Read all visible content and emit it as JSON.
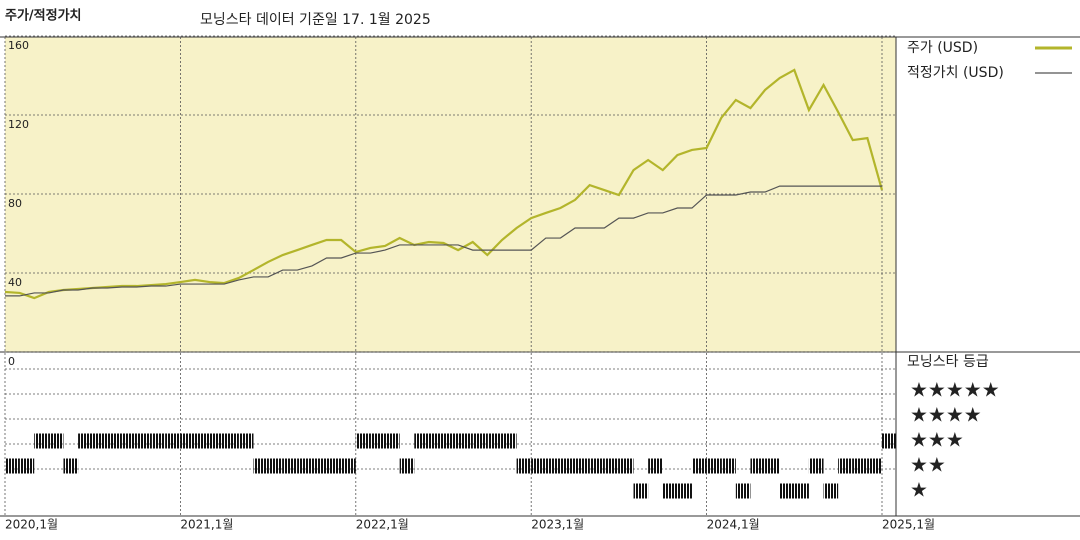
{
  "chart_data": [
    {
      "type": "line",
      "title": "주가/적정가치",
      "subtitle": "모닝스타 데이터 기준일 17. 1월 2025",
      "x": [
        "2020-01",
        "2020-02",
        "2020-03",
        "2020-04",
        "2020-05",
        "2020-06",
        "2020-07",
        "2020-08",
        "2020-09",
        "2020-10",
        "2020-11",
        "2020-12",
        "2021-01",
        "2021-02",
        "2021-03",
        "2021-04",
        "2021-05",
        "2021-06",
        "2021-07",
        "2021-08",
        "2021-09",
        "2021-10",
        "2021-11",
        "2021-12",
        "2022-01",
        "2022-02",
        "2022-03",
        "2022-04",
        "2022-05",
        "2022-06",
        "2022-07",
        "2022-08",
        "2022-09",
        "2022-10",
        "2022-11",
        "2022-12",
        "2023-01",
        "2023-02",
        "2023-03",
        "2023-04",
        "2023-05",
        "2023-06",
        "2023-07",
        "2023-08",
        "2023-09",
        "2023-10",
        "2023-11",
        "2023-12",
        "2024-01",
        "2024-02",
        "2024-03",
        "2024-04",
        "2024-05",
        "2024-06",
        "2024-07",
        "2024-08",
        "2024-09",
        "2024-10",
        "2024-11",
        "2024-12",
        "2025-01"
      ],
      "series": [
        {
          "name": "주가 (USD)",
          "color": "#b3b52b",
          "values": [
            30.4,
            29.9,
            27.3,
            30.4,
            31.4,
            31.9,
            32.4,
            32.9,
            33.4,
            33.4,
            33.9,
            34.4,
            35.4,
            36.5,
            35.4,
            34.9,
            37.5,
            41.5,
            45.6,
            49.1,
            51.6,
            54.2,
            56.7,
            56.7,
            50.6,
            52.7,
            53.7,
            57.7,
            54.2,
            55.7,
            55.2,
            51.6,
            55.7,
            49.1,
            56.7,
            62.8,
            67.8,
            70.4,
            72.9,
            77.0,
            84.5,
            82.0,
            79.5,
            92.1,
            97.2,
            92.1,
            99.7,
            102.3,
            103.3,
            118.5,
            127.6,
            123.5,
            132.7,
            138.7,
            142.8,
            122.5,
            135.2,
            121.5,
            107.3,
            108.3,
            82.0
          ]
        },
        {
          "name": "적정가치 (USD)",
          "color": "#555555",
          "values": [
            28.4,
            28.4,
            29.9,
            29.9,
            31.4,
            31.4,
            32.4,
            32.4,
            32.9,
            32.9,
            33.4,
            33.4,
            34.4,
            34.4,
            34.4,
            34.4,
            36.5,
            38.0,
            38.0,
            41.5,
            41.5,
            43.6,
            47.6,
            47.6,
            50.1,
            50.1,
            51.6,
            54.2,
            54.2,
            54.2,
            54.2,
            54.2,
            51.6,
            51.6,
            51.6,
            51.6,
            51.6,
            57.7,
            57.7,
            62.8,
            62.8,
            62.8,
            67.8,
            67.8,
            70.4,
            70.4,
            72.9,
            72.9,
            79.5,
            79.5,
            79.5,
            81.0,
            81.0,
            84.0,
            84.0,
            84.0,
            84.0,
            84.0,
            84.0,
            84.0,
            84.0
          ]
        }
      ],
      "ylim": [
        0,
        160
      ],
      "yticks": [
        0,
        40,
        80,
        120,
        160
      ],
      "xticks": [
        {
          "value": "2020-01",
          "label": "2020,1월"
        },
        {
          "value": "2021-01",
          "label": "2021,1월"
        },
        {
          "value": "2022-01",
          "label": "2022,1월"
        },
        {
          "value": "2023-01",
          "label": "2023,1월"
        },
        {
          "value": "2024-01",
          "label": "2024,1월"
        },
        {
          "value": "2025-01",
          "label": "2025,1월"
        }
      ],
      "grid": true
    },
    {
      "type": "rating",
      "title": "모닝스타 등급",
      "levels": [
        "★",
        "★★",
        "★★★",
        "★★★★",
        "★★★★★"
      ],
      "x": [
        "2020-01",
        "2020-02",
        "2020-03",
        "2020-04",
        "2020-05",
        "2020-06",
        "2020-07",
        "2020-08",
        "2020-09",
        "2020-10",
        "2020-11",
        "2020-12",
        "2021-01",
        "2021-02",
        "2021-03",
        "2021-04",
        "2021-05",
        "2021-06",
        "2021-07",
        "2021-08",
        "2021-09",
        "2021-10",
        "2021-11",
        "2021-12",
        "2022-01",
        "2022-02",
        "2022-03",
        "2022-04",
        "2022-05",
        "2022-06",
        "2022-07",
        "2022-08",
        "2022-09",
        "2022-10",
        "2022-11",
        "2022-12",
        "2023-01",
        "2023-02",
        "2023-03",
        "2023-04",
        "2023-05",
        "2023-06",
        "2023-07",
        "2023-08",
        "2023-09",
        "2023-10",
        "2023-11",
        "2023-12",
        "2024-01",
        "2024-02",
        "2024-03",
        "2024-04",
        "2024-05",
        "2024-06",
        "2024-07",
        "2024-08",
        "2024-09",
        "2024-10",
        "2024-11",
        "2024-12",
        "2025-01"
      ],
      "values": [
        2,
        2,
        3,
        3,
        2,
        3,
        3,
        3,
        3,
        3,
        3,
        3,
        3,
        3,
        3,
        3,
        3,
        2,
        2,
        2,
        2,
        2,
        2,
        2,
        3,
        3,
        3,
        2,
        3,
        3,
        3,
        3,
        3,
        3,
        3,
        2,
        2,
        2,
        2,
        2,
        2,
        2,
        2,
        1,
        2,
        1,
        1,
        2,
        2,
        2,
        1,
        2,
        2,
        1,
        1,
        2,
        1,
        2,
        2,
        2,
        3
      ]
    }
  ]
}
